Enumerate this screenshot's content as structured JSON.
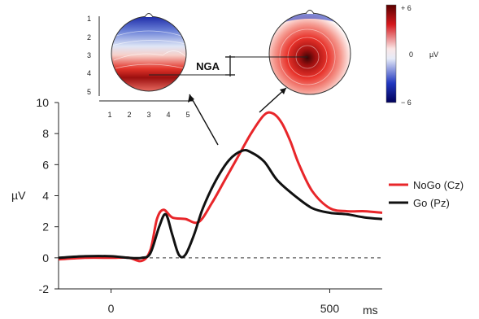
{
  "chart_data": {
    "type": "line",
    "title": "",
    "xlabel": "ms",
    "ylabel": "µV",
    "xlim": [
      -120,
      620
    ],
    "ylim": [
      -2,
      10
    ],
    "xticks": [
      0,
      500
    ],
    "yticks": [
      -2,
      0,
      2,
      4,
      6,
      8,
      10
    ],
    "zero_line": "dashed",
    "legend": {
      "position": "right",
      "entries": [
        "NoGo (Cz)",
        "Go (Pz)"
      ]
    },
    "series": [
      {
        "name": "NoGo (Cz)",
        "color": "#e8262a",
        "x": [
          -120,
          -60,
          0,
          40,
          70,
          90,
          105,
          120,
          140,
          170,
          200,
          230,
          260,
          290,
          320,
          350,
          370,
          390,
          410,
          430,
          460,
          500,
          540,
          580,
          620
        ],
        "y": [
          -0.1,
          0.0,
          0.0,
          0.0,
          -0.2,
          0.5,
          2.5,
          3.1,
          2.6,
          2.5,
          2.3,
          3.5,
          5.0,
          6.5,
          8.0,
          9.2,
          9.3,
          8.7,
          7.5,
          6.0,
          4.3,
          3.2,
          3.0,
          3.0,
          2.9
        ]
      },
      {
        "name": "Go (Pz)",
        "color": "#111111",
        "x": [
          -120,
          -60,
          0,
          40,
          70,
          90,
          110,
          125,
          140,
          155,
          170,
          190,
          210,
          240,
          270,
          300,
          320,
          350,
          380,
          420,
          460,
          500,
          540,
          580,
          620
        ],
        "y": [
          0.0,
          0.1,
          0.1,
          0.0,
          0.0,
          0.3,
          2.0,
          2.8,
          1.5,
          0.2,
          0.2,
          1.5,
          3.2,
          5.0,
          6.3,
          6.9,
          6.8,
          6.2,
          5.0,
          4.0,
          3.2,
          2.9,
          2.8,
          2.6,
          2.5
        ]
      }
    ],
    "annotations": [
      "NGA"
    ]
  },
  "topomaps": {
    "left_map": {
      "y_ticks": [
        "1",
        "2",
        "3",
        "4",
        "5"
      ],
      "x_ticks": [
        "1",
        "2",
        "3",
        "4",
        "5"
      ]
    },
    "colorbar": {
      "unit": "µV",
      "max_label": "+ 6",
      "mid_label": "0",
      "min_label": "− 6",
      "max_color": "#6b0000",
      "min_color": "#00005a"
    }
  }
}
